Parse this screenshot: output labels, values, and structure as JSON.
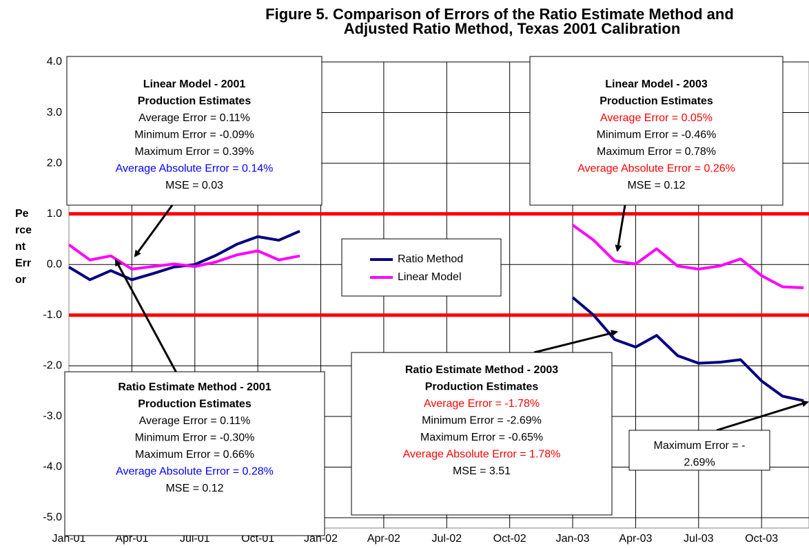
{
  "chart_data": {
    "type": "line",
    "title": [
      "Figure 5.  Comparison of Errors of the Ratio Estimate Method and",
      "Adjusted Ratio Method, Texas 2001 Calibration"
    ],
    "ylabel": [
      "Pe",
      "rce",
      "nt",
      "Err",
      "or"
    ],
    "categories": [
      "Jan-01",
      null,
      null,
      "Apr-01",
      null,
      null,
      "Jul-01",
      null,
      null,
      "Oct-01",
      null,
      null,
      "Jan-02",
      null,
      null,
      "Apr-02",
      null,
      null,
      "Jul-02",
      null,
      null,
      "Oct-02",
      null,
      null,
      "Jan-03",
      null,
      null,
      "Apr-03",
      null,
      null,
      "Jul-03",
      null,
      null,
      "Oct-03",
      null,
      null
    ],
    "series": [
      {
        "name": "Ratio Method",
        "color": "#000080",
        "values": [
          -0.05,
          -0.3,
          -0.12,
          -0.3,
          -0.18,
          -0.05,
          0.0,
          0.18,
          0.4,
          0.55,
          0.48,
          0.66,
          null,
          null,
          null,
          null,
          null,
          null,
          null,
          null,
          null,
          null,
          null,
          null,
          -0.65,
          -1.0,
          -1.48,
          -1.63,
          -1.4,
          -1.8,
          -1.95,
          -1.93,
          -1.88,
          -2.3,
          -2.6,
          -2.69
        ]
      },
      {
        "name": "Linear Model",
        "color": "#ff00ff",
        "values": [
          0.39,
          0.09,
          0.17,
          -0.09,
          -0.04,
          0.01,
          -0.04,
          0.05,
          0.19,
          0.27,
          0.09,
          0.17,
          null,
          null,
          null,
          null,
          null,
          null,
          null,
          null,
          null,
          null,
          null,
          null,
          0.78,
          0.48,
          0.07,
          0.01,
          0.31,
          -0.03,
          -0.09,
          -0.03,
          0.11,
          -0.22,
          -0.44,
          -0.46
        ]
      }
    ],
    "ylim": [
      -5,
      4
    ],
    "yticks": [
      {
        "value": 4,
        "label": "4.0"
      },
      {
        "value": 3,
        "label": "3.0"
      },
      {
        "value": 2,
        "label": "2.0"
      },
      {
        "value": 1,
        "label": "1.0"
      },
      {
        "value": 0,
        "label": "0.0"
      },
      {
        "value": -1,
        "label": "-1.0"
      },
      {
        "value": -2,
        "label": "-2.0"
      },
      {
        "value": -3,
        "label": "-3.0"
      },
      {
        "value": -4,
        "label": "-4.0"
      },
      {
        "value": -5,
        "label": "-5.0"
      }
    ],
    "grid": true,
    "reference_lines": {
      "values": [
        1,
        -1
      ],
      "color": "#ff0000"
    },
    "annotations": [
      {
        "heading": [
          "Linear Model - 2001",
          "Production Estimates"
        ],
        "lines": [
          {
            "text": "Average Error = 0.11%",
            "color": "#000000"
          },
          {
            "text": "Minimum Error = -0.09%",
            "color": "#000000"
          },
          {
            "text": "Maximum Error = 0.39%",
            "color": "#000000"
          },
          {
            "text": "Average Absolute Error = 0.14%",
            "color": "#0000ff"
          },
          {
            "text": "MSE = 0.03",
            "color": "#000000"
          }
        ]
      },
      {
        "heading": [
          "Linear Model - 2003",
          "Production Estimates"
        ],
        "lines": [
          {
            "text": "Average Error = 0.05%",
            "color": "#ff0000"
          },
          {
            "text": "Minimum Error = -0.46%",
            "color": "#000000"
          },
          {
            "text": "Maximum Error = 0.78%",
            "color": "#000000"
          },
          {
            "text": "Average Absolute Error = 0.26%",
            "color": "#ff0000"
          },
          {
            "text": "MSE = 0.12",
            "color": "#000000"
          }
        ]
      },
      {
        "heading": [
          "Ratio Estimate Method - 2001",
          "Production Estimates"
        ],
        "lines": [
          {
            "text": "Average Error = 0.11%",
            "color": "#000000"
          },
          {
            "text": "Minimum Error = -0.30%",
            "color": "#000000"
          },
          {
            "text": "Maximum Error = 0.66%",
            "color": "#000000"
          },
          {
            "text": "Average Absolute Error = 0.28%",
            "color": "#0000ff"
          },
          {
            "text": "MSE = 0.12",
            "color": "#000000"
          }
        ]
      },
      {
        "heading": [
          "Ratio Estimate Method - 2003",
          "Production Estimates"
        ],
        "lines": [
          {
            "text": "Average Error = -1.78%",
            "color": "#ff0000"
          },
          {
            "text": "Minimum Error = -2.69%",
            "color": "#000000"
          },
          {
            "text": "Maximum Error = -0.65%",
            "color": "#000000"
          },
          {
            "text": "Average Absolute Error = 1.78%",
            "color": "#ff0000"
          },
          {
            "text": "MSE = 3.51",
            "color": "#000000"
          }
        ]
      },
      {
        "heading": [],
        "lines": [
          {
            "text": "Maximum Error = -",
            "color": "#000000"
          },
          {
            "text": "2.69%",
            "color": "#000000"
          }
        ]
      }
    ]
  }
}
